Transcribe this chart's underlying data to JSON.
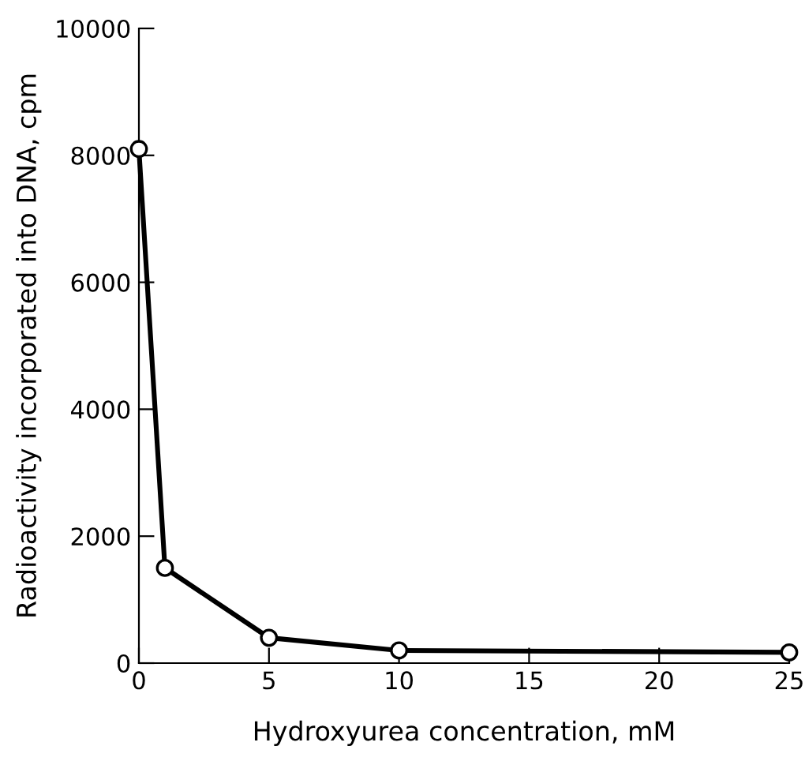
{
  "chart_data": {
    "type": "line",
    "xlabel": "Hydroxyurea concentration, mM",
    "ylabel": "Radioactivity incorporated into DNA, cpm",
    "x": [
      0,
      1,
      5,
      10,
      25
    ],
    "series": [
      {
        "color": "#000000",
        "values": [
          8100,
          1500,
          400,
          200,
          170
        ]
      }
    ],
    "xlim": [
      0,
      25
    ],
    "ylim": [
      0,
      10000
    ],
    "xticks": [
      0,
      5,
      10,
      15,
      20,
      25
    ],
    "yticks": [
      0,
      2000,
      4000,
      6000,
      8000,
      10000
    ],
    "marker": "circle",
    "line_style": "solid",
    "grid": false,
    "legend": false
  }
}
